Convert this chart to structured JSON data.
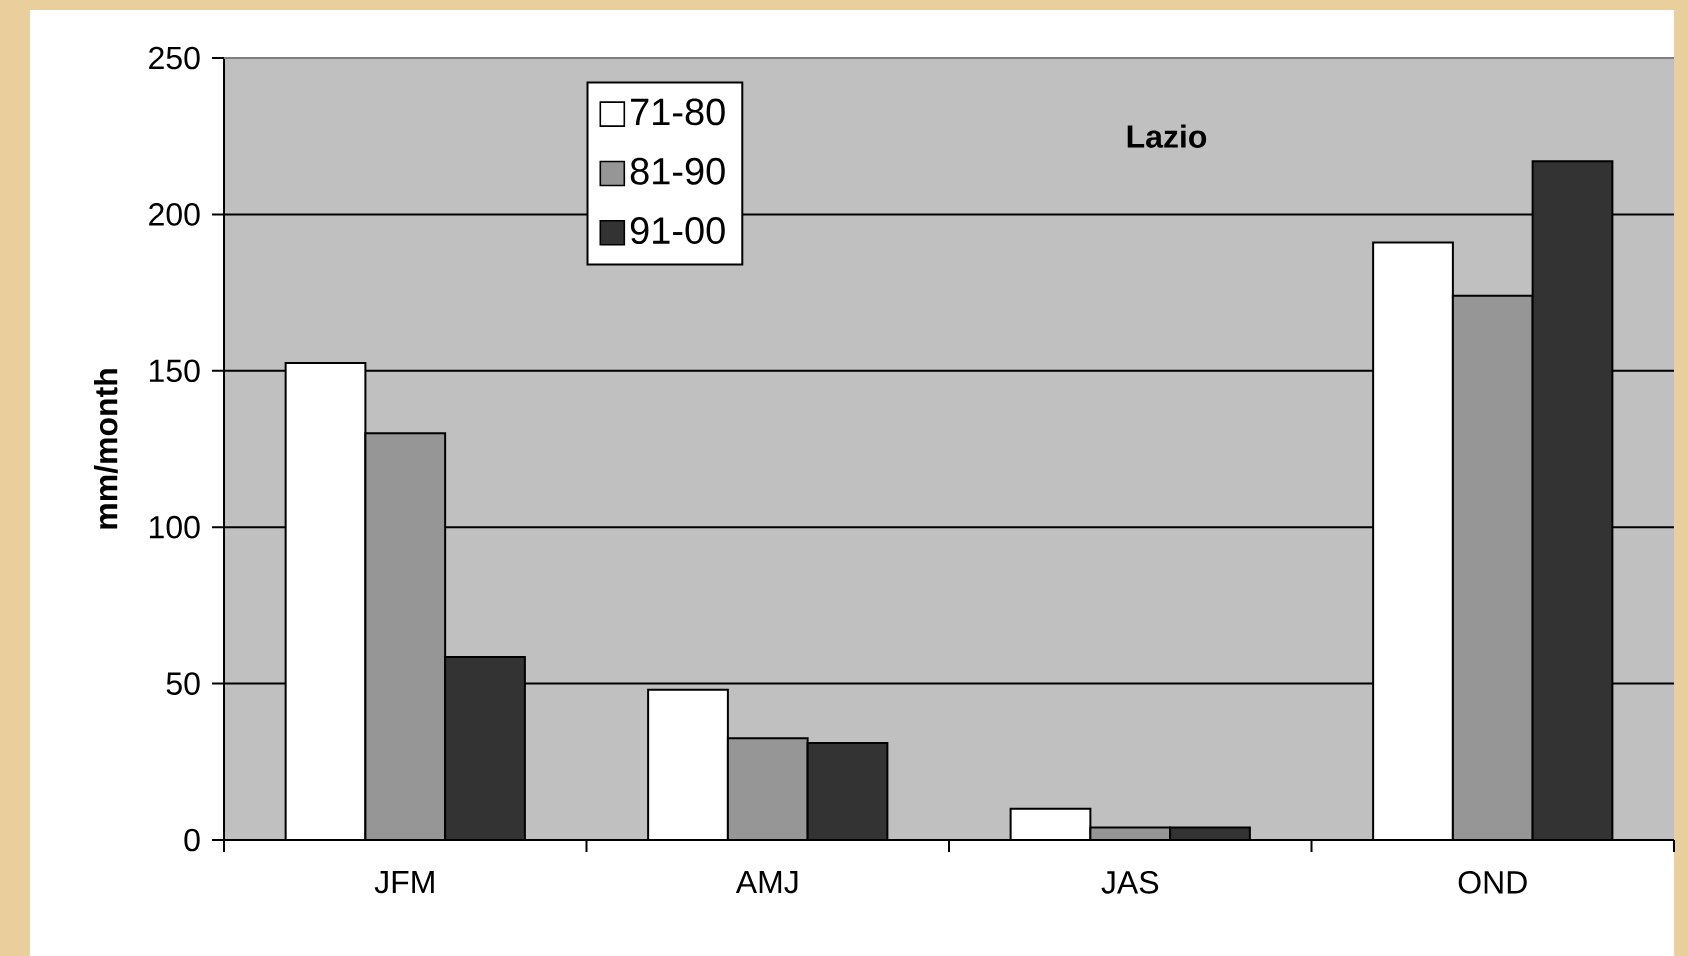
{
  "chart_data": {
    "type": "bar",
    "title": "Lazio",
    "ylabel": "mm/month",
    "categories": [
      "JFM",
      "AMJ",
      "JAS",
      "OND"
    ],
    "series": [
      {
        "name": "71-80",
        "color": "#ffffff",
        "values": [
          152.5,
          48,
          10,
          191
        ]
      },
      {
        "name": "81-90",
        "color": "#969696",
        "values": [
          130,
          32.5,
          4,
          174
        ]
      },
      {
        "name": "91-00",
        "color": "#333333",
        "values": [
          58.5,
          31,
          4,
          217
        ]
      }
    ],
    "ylim": [
      0,
      250
    ],
    "yticks": [
      0,
      50,
      100,
      150,
      200,
      250
    ],
    "grid": "y",
    "legend": "top"
  }
}
